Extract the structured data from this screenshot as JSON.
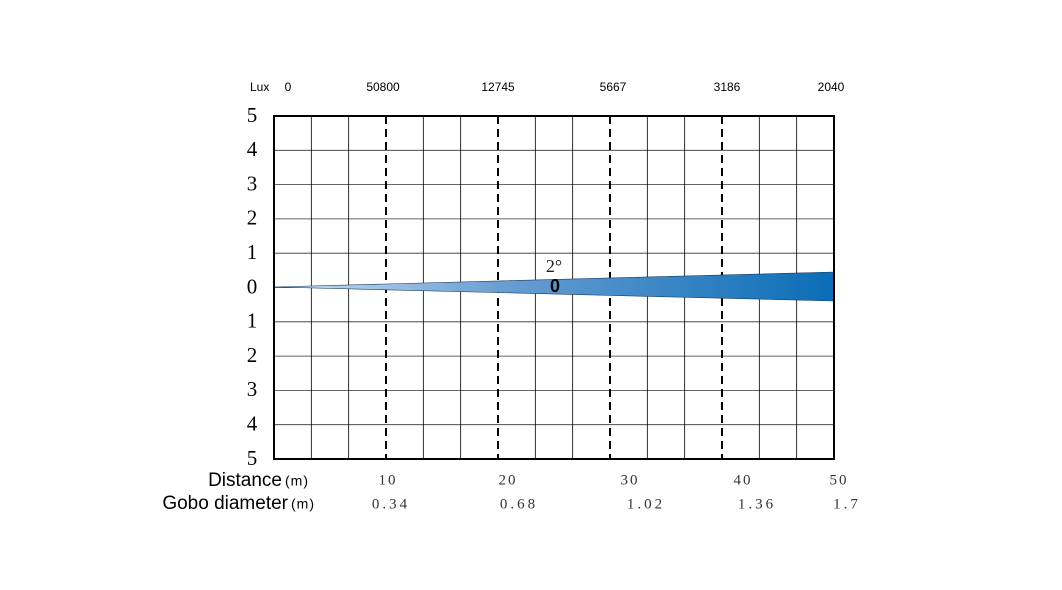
{
  "lux_label": "Lux",
  "lux": [
    "0",
    "50800",
    "12745",
    "5667",
    "3186",
    "2040"
  ],
  "y_labels": [
    "5",
    "4",
    "3",
    "2",
    "1",
    "0",
    "1",
    "2",
    "3",
    "4",
    "5"
  ],
  "beam_angle": "2°",
  "beam_marker": "0",
  "distance": {
    "label": "Distance",
    "unit": "(m)",
    "values": [
      "10",
      "20",
      "30",
      "40",
      "50"
    ]
  },
  "gobo": {
    "label": "Gobo diameter",
    "unit": "(m)",
    "values": [
      "0.34",
      "0.68",
      "1.02",
      "1.36",
      "1.7"
    ]
  }
}
